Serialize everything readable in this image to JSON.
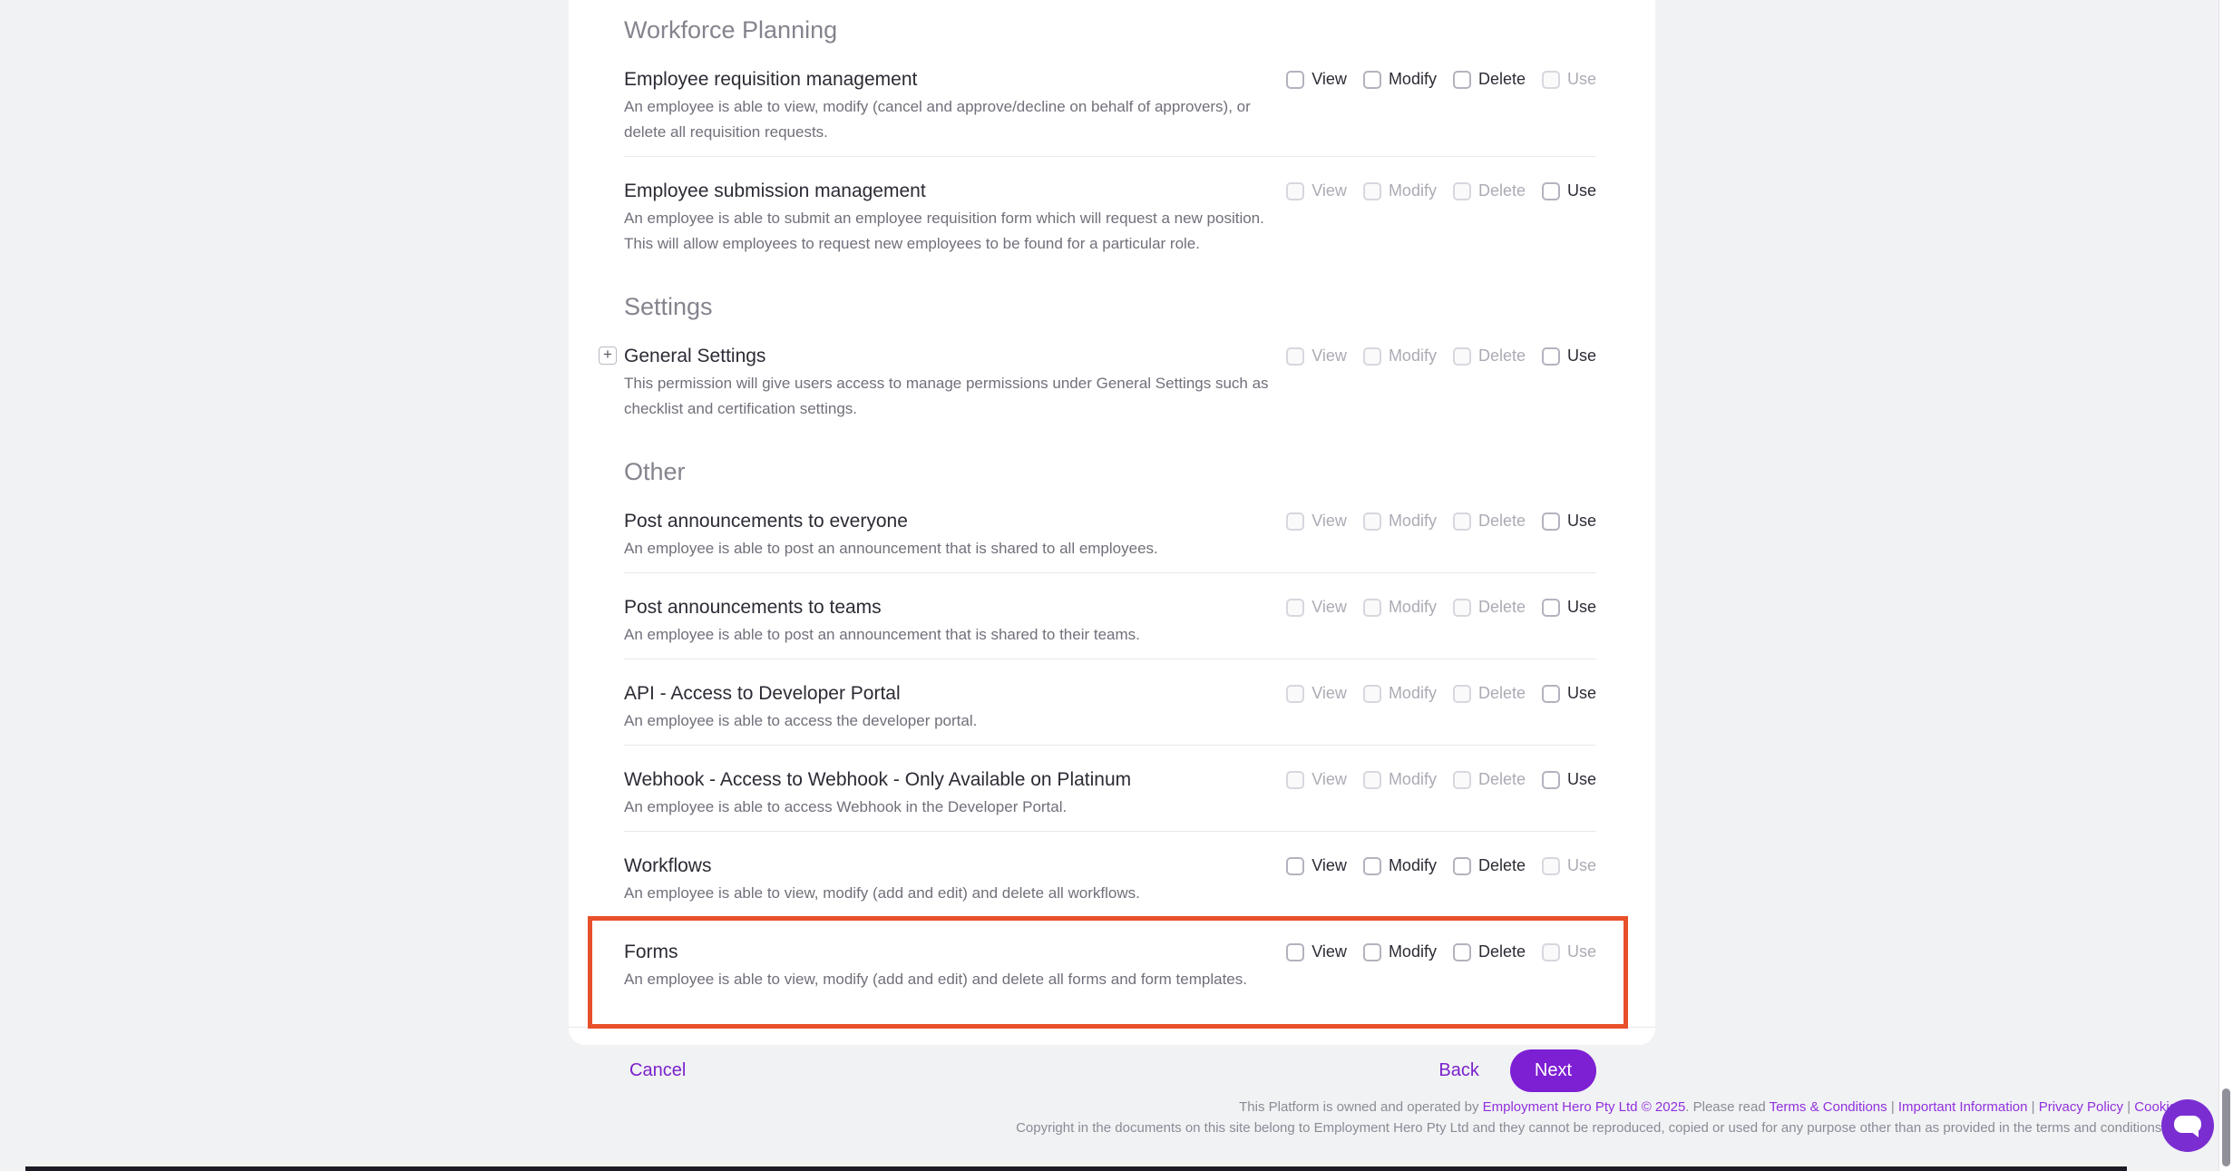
{
  "colors": {
    "page_background": "#f1f2f4",
    "card_background": "#ffffff",
    "accent_purple": "#7b22cc",
    "next_button_purple": "#7d1fd3",
    "highlight_red": "#e8502b",
    "chat_bubble_purple": "#7a2ed1"
  },
  "icons": {
    "expand": "plus-icon",
    "chat": "chat-bubble-icon"
  },
  "sections": [
    {
      "title": "Workforce Planning",
      "rows": [
        {
          "title": "Employee requisition management",
          "description": "An employee is able to view, modify (cancel and approve/decline on behalf of approvers), or delete all requisition requests.",
          "expandable": false,
          "highlighted": false,
          "permissions": [
            {
              "label": "View",
              "enabled": true,
              "checked": false
            },
            {
              "label": "Modify",
              "enabled": true,
              "checked": false
            },
            {
              "label": "Delete",
              "enabled": true,
              "checked": false
            },
            {
              "label": "Use",
              "enabled": false,
              "checked": false
            }
          ]
        },
        {
          "title": "Employee submission management",
          "description": "An employee is able to submit an employee requisition form which will request a new position. This will allow employees to request new employees to be found for a particular role.",
          "expandable": false,
          "highlighted": false,
          "permissions": [
            {
              "label": "View",
              "enabled": false,
              "checked": false
            },
            {
              "label": "Modify",
              "enabled": false,
              "checked": false
            },
            {
              "label": "Delete",
              "enabled": false,
              "checked": false
            },
            {
              "label": "Use",
              "enabled": true,
              "checked": false
            }
          ]
        }
      ]
    },
    {
      "title": "Settings",
      "rows": [
        {
          "title": "General Settings",
          "description": "This permission will give users access to manage permissions under General Settings such as checklist and certification settings.",
          "expandable": true,
          "highlighted": false,
          "permissions": [
            {
              "label": "View",
              "enabled": false,
              "checked": false
            },
            {
              "label": "Modify",
              "enabled": false,
              "checked": false
            },
            {
              "label": "Delete",
              "enabled": false,
              "checked": false
            },
            {
              "label": "Use",
              "enabled": true,
              "checked": false
            }
          ]
        }
      ]
    },
    {
      "title": "Other",
      "rows": [
        {
          "title": "Post announcements to everyone",
          "description": "An employee is able to post an announcement that is shared to all employees.",
          "expandable": false,
          "highlighted": false,
          "permissions": [
            {
              "label": "View",
              "enabled": false,
              "checked": false
            },
            {
              "label": "Modify",
              "enabled": false,
              "checked": false
            },
            {
              "label": "Delete",
              "enabled": false,
              "checked": false
            },
            {
              "label": "Use",
              "enabled": true,
              "checked": false
            }
          ]
        },
        {
          "title": "Post announcements to teams",
          "description": "An employee is able to post an announcement that is shared to their teams.",
          "expandable": false,
          "highlighted": false,
          "permissions": [
            {
              "label": "View",
              "enabled": false,
              "checked": false
            },
            {
              "label": "Modify",
              "enabled": false,
              "checked": false
            },
            {
              "label": "Delete",
              "enabled": false,
              "checked": false
            },
            {
              "label": "Use",
              "enabled": true,
              "checked": false
            }
          ]
        },
        {
          "title": "API - Access to Developer Portal",
          "description": "An employee is able to access the developer portal.",
          "expandable": false,
          "highlighted": false,
          "permissions": [
            {
              "label": "View",
              "enabled": false,
              "checked": false
            },
            {
              "label": "Modify",
              "enabled": false,
              "checked": false
            },
            {
              "label": "Delete",
              "enabled": false,
              "checked": false
            },
            {
              "label": "Use",
              "enabled": true,
              "checked": false
            }
          ]
        },
        {
          "title": "Webhook - Access to Webhook - Only Available on Platinum",
          "description": "An employee is able to access Webhook in the Developer Portal.",
          "expandable": false,
          "highlighted": false,
          "permissions": [
            {
              "label": "View",
              "enabled": false,
              "checked": false
            },
            {
              "label": "Modify",
              "enabled": false,
              "checked": false
            },
            {
              "label": "Delete",
              "enabled": false,
              "checked": false
            },
            {
              "label": "Use",
              "enabled": true,
              "checked": false
            }
          ]
        },
        {
          "title": "Workflows",
          "description": "An employee is able to view, modify (add and edit) and delete all workflows.",
          "expandable": false,
          "highlighted": false,
          "permissions": [
            {
              "label": "View",
              "enabled": true,
              "checked": false
            },
            {
              "label": "Modify",
              "enabled": true,
              "checked": false
            },
            {
              "label": "Delete",
              "enabled": true,
              "checked": false
            },
            {
              "label": "Use",
              "enabled": false,
              "checked": false
            }
          ]
        },
        {
          "title": "Forms",
          "description": "An employee is able to view, modify (add and edit) and delete all forms and form templates.",
          "expandable": false,
          "highlighted": true,
          "permissions": [
            {
              "label": "View",
              "enabled": true,
              "checked": false
            },
            {
              "label": "Modify",
              "enabled": true,
              "checked": false
            },
            {
              "label": "Delete",
              "enabled": true,
              "checked": false
            },
            {
              "label": "Use",
              "enabled": false,
              "checked": false
            }
          ]
        }
      ]
    }
  ],
  "actions": {
    "cancel": "Cancel",
    "back": "Back",
    "next": "Next"
  },
  "footer": {
    "line1_segments": [
      {
        "text": "This Platform is owned and operated by ",
        "link": false
      },
      {
        "text": "Employment Hero Pty Ltd © 2025",
        "link": true
      },
      {
        "text": ". Please read ",
        "link": false
      },
      {
        "text": "Terms & Conditions",
        "link": true
      },
      {
        "text": " | ",
        "link": false
      },
      {
        "text": "Important Information",
        "link": true
      },
      {
        "text": " | ",
        "link": false
      },
      {
        "text": "Privacy Policy",
        "link": true
      },
      {
        "text": " | ",
        "link": false
      },
      {
        "text": "Cookie",
        "link": true
      }
    ],
    "line2": "Copyright in the documents on this site belong to Employment Hero Pty Ltd and they cannot be reproduced, copied or used for any purpose other than as provided in the terms and conditions of"
  }
}
